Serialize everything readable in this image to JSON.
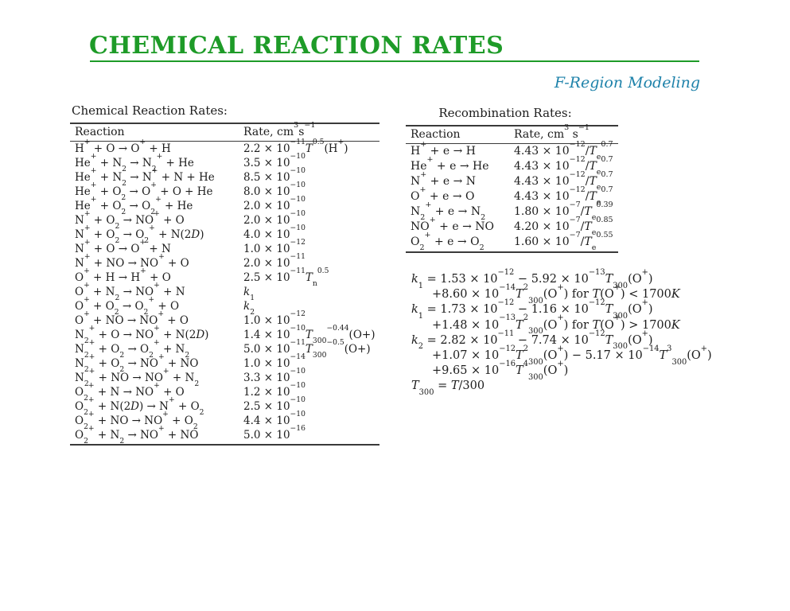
{
  "slide": {
    "title": "CHEMICAL REACTION RATES",
    "subtitle": "F-Region Modeling",
    "colors": {
      "title_green": "#1E9B28",
      "subtitle_teal": "#1E82AA",
      "text": "#1c1c1c",
      "rule": "#3a3a3a"
    }
  },
  "left_table": {
    "caption": "Chemical Reaction Rates:",
    "headers": [
      "Reaction",
      "Rate, cm^{3}s^{−1}"
    ],
    "rows": [
      [
        "H^{+} + O → O^{+} + H",
        "2.2 × 10^{−11}*T*^{0.5}(H^{+})"
      ],
      [
        "He^{+} + N_{2} → N_{2}^{+} + He",
        "3.5 × 10^{−10}"
      ],
      [
        "He^{+} + N_{2} → N^{+} + N + He",
        "8.5 × 10^{−10}"
      ],
      [
        "He^{+} + O_{2} → O^{+} + O + He",
        "8.0 × 10^{−10}"
      ],
      [
        "He^{+} + O_{2} → O_{2}^{+} + He",
        "2.0 × 10^{−10}"
      ],
      [
        "N^{+} + O_{2} → NO^{+} + O",
        "2.0 × 10^{−10}"
      ],
      [
        "N^{+} + O_{2} → O_{2}^{+} + N(2*D*)",
        "4.0 × 10^{−10}"
      ],
      [
        "N^{+} + O → O^{+} + N",
        "1.0 × 10^{−12}"
      ],
      [
        "N^{+} + NO → NO^{+} + O",
        "2.0 × 10^{−11}"
      ],
      [
        "O^{+} + H → H^{+} + O",
        "2.5 × 10^{−11}*T*_{n}^{0.5}"
      ],
      [
        "O^{+} + N_{2} → NO^{+} + N",
        "*k*_{1}"
      ],
      [
        "O^{+} + O_{2} → O_{2}^{+} + O",
        "*k*_{2}"
      ],
      [
        "O^{+} + NO → NO^{+} + O",
        "1.0 × 10^{−12}"
      ],
      [
        "N_{2}^{+} + O → NO^{+} + N(2*D*)",
        "1.4 × 10^{−10}*T*_{300}^{−0.44}(O+)"
      ],
      [
        "N_{2}^{+} + O_{2} → O_{2}^{+} + N_{2}",
        "5.0 × 10^{−11}*T*_{300}^{−0.5}(O+)"
      ],
      [
        "N_{2}^{+} + O_{2} → NO^{+} + NO",
        "1.0 × 10^{−14}"
      ],
      [
        "N_{2}^{+} + NO → NO^{+} + N_{2}",
        "3.3 × 10^{−10}"
      ],
      [
        "O_{2}^{+} + N → NO^{+} + O",
        "1.2 × 10^{−10}"
      ],
      [
        "O_{2}^{+} + N(2*D*) → N^{+} + O_{2}",
        "2.5 × 10^{−10}"
      ],
      [
        "O_{2}^{+} + NO → NO^{+} + O_{2}",
        "4.4 × 10^{−10}"
      ],
      [
        "O_{2}^{+} + N_{2} → NO^{+} + NO",
        "5.0 × 10^{−16}"
      ]
    ]
  },
  "right_table": {
    "caption": "Recombination Rates:",
    "headers": [
      "Reaction",
      "Rate, cm^{3} s^{−1}"
    ],
    "rows": [
      [
        "H^{+} + e → H",
        "4.43 × 10^{−12}/*T*_{e}^{0.7}"
      ],
      [
        "He^{+} + e → He",
        "4.43 × 10^{−12}/*T*_{e}^{0.7}"
      ],
      [
        "N^{+} + e → N",
        "4.43 × 10^{−12}/*T*_{e}^{0.7}"
      ],
      [
        "O^{+} + e → O",
        "4.43 × 10^{−12}/*T*_{e}^{0.7}"
      ],
      [
        "N_{2}^{+} + e → N_{2}",
        "1.80 × 10^{−7}/*T*_{e}^{0.39}"
      ],
      [
        "NO^{+} + e → NO",
        "4.20 × 10^{−7}/*T*_{e}^{0.85}"
      ],
      [
        "O_{2}^{+} + e → O_{2}",
        "1.60 × 10^{−7}/*T*_{e}^{0.55}"
      ]
    ]
  },
  "equations": {
    "lines": [
      {
        "text": "*k*_{1} = 1.53 × 10^{−12} − 5.92 × 10^{−13}*T*_{300}(O^{+})",
        "indent": false
      },
      {
        "text": "+8.60 × 10^{−14}*T*^{2}_{300}(O^{+}) for *T*(O^{+}) < 1700*K*",
        "indent": true
      },
      {
        "text": "*k*_{1} = 1.73 × 10^{−12} − 1.16 × 10^{−12}*T*_{300}(O^{+})",
        "indent": false
      },
      {
        "text": "+1.48 × 10^{−13}*T*^{2}_{300}(O^{+}) for *T*(O^{+}) > 1700*K*",
        "indent": true
      },
      {
        "text": "*k*_{2} = 2.82 × 10^{−11} − 7.74 × 10^{−12}*T*_{300}(O^{+})",
        "indent": false
      },
      {
        "text": "+1.07 × 10^{−12}*T*^{2}_{300}(O^{+}) − 5.17 × 10^{−14}*T*^{3}_{300}(O^{+})",
        "indent": true
      },
      {
        "text": "+9.65 × 10^{−16}*T*^{4}_{300}(O^{+})",
        "indent": true
      },
      {
        "text": "*T*_{300} = *T*/300",
        "indent": false
      }
    ]
  }
}
